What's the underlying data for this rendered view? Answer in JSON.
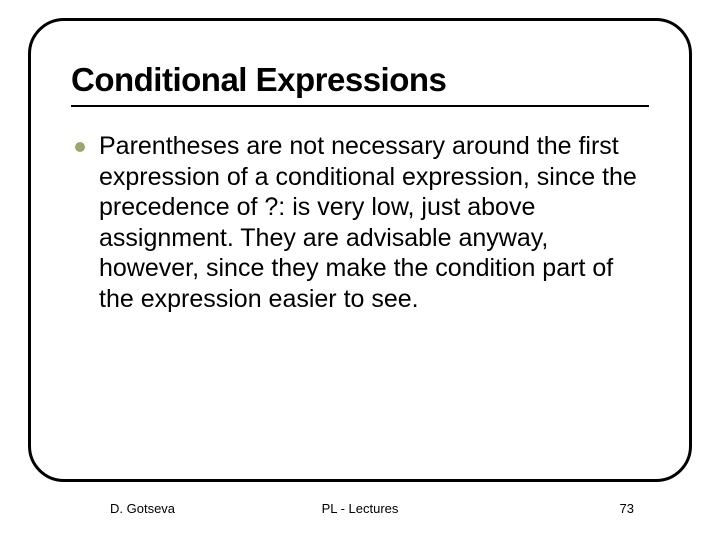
{
  "slide": {
    "title": "Conditional Expressions",
    "bullet_color": "#9aa86f",
    "title_fontsize": 33,
    "body_fontsize": 25,
    "body_text": "Parentheses are not necessary around the first expression of a conditional expression, since the precedence of ?: is very low, just above assignment. They are advisable anyway, however, since they make the condition part of the expression easier to see.",
    "frame": {
      "border_color": "#000000",
      "border_width": 3,
      "border_radius": 36
    }
  },
  "footer": {
    "author": "D. Gotseva",
    "center": "PL - Lectures",
    "page_number": "73",
    "fontsize": 13
  },
  "background_color": "#ffffff"
}
